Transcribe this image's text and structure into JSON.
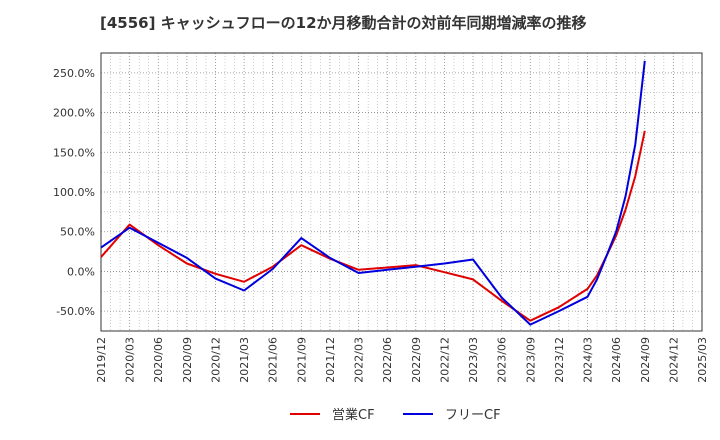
{
  "chart_data": {
    "type": "line",
    "title": "[4556]  キャッシュフローの12か月移動合計の対前年同期増減率の推移",
    "xlabel": "",
    "ylabel": "",
    "ylim": [
      -75,
      275
    ],
    "yticks": [
      -50,
      0,
      50,
      100,
      150,
      200,
      250
    ],
    "ytick_labels": [
      "-50.0%",
      "0.0%",
      "50.0%",
      "100.0%",
      "150.0%",
      "200.0%",
      "250.0%"
    ],
    "xticks": [
      "2019/12",
      "2020/03",
      "2020/06",
      "2020/09",
      "2020/12",
      "2021/03",
      "2021/06",
      "2021/09",
      "2021/12",
      "2022/03",
      "2022/06",
      "2022/09",
      "2022/12",
      "2023/03",
      "2023/06",
      "2023/09",
      "2023/12",
      "2024/03",
      "2024/06",
      "2024/09",
      "2024/12",
      "2025/03"
    ],
    "grid": true,
    "legend_position": "bottom-center",
    "series": [
      {
        "name": "営業CF",
        "color": "#e00000",
        "points": [
          {
            "x": 0,
            "y": 18
          },
          {
            "x": 1,
            "y": 59
          },
          {
            "x": 2,
            "y": 33
          },
          {
            "x": 3,
            "y": 10
          },
          {
            "x": 4,
            "y": -3
          },
          {
            "x": 5,
            "y": -13
          },
          {
            "x": 6,
            "y": 6
          },
          {
            "x": 7,
            "y": 33
          },
          {
            "x": 8,
            "y": 16
          },
          {
            "x": 9,
            "y": 2
          },
          {
            "x": 10,
            "y": 5
          },
          {
            "x": 11,
            "y": 8
          },
          {
            "x": 12,
            "y": -1
          },
          {
            "x": 13,
            "y": -10
          },
          {
            "x": 14,
            "y": -37
          },
          {
            "x": 15,
            "y": -62
          },
          {
            "x": 16,
            "y": -45
          },
          {
            "x": 17,
            "y": -22
          },
          {
            "x": 17.33,
            "y": -5
          },
          {
            "x": 17.67,
            "y": 20
          },
          {
            "x": 18,
            "y": 45
          },
          {
            "x": 18.33,
            "y": 78
          },
          {
            "x": 18.67,
            "y": 120
          },
          {
            "x": 19,
            "y": 177
          }
        ]
      },
      {
        "name": "フリーCF",
        "color": "#0000dd",
        "points": [
          {
            "x": 0,
            "y": 30
          },
          {
            "x": 1,
            "y": 55
          },
          {
            "x": 2,
            "y": 36
          },
          {
            "x": 3,
            "y": 17
          },
          {
            "x": 4,
            "y": -9
          },
          {
            "x": 5,
            "y": -24
          },
          {
            "x": 6,
            "y": 3
          },
          {
            "x": 7,
            "y": 42
          },
          {
            "x": 8,
            "y": 17
          },
          {
            "x": 9,
            "y": -2
          },
          {
            "x": 10,
            "y": 2
          },
          {
            "x": 11,
            "y": 6
          },
          {
            "x": 12,
            "y": 10
          },
          {
            "x": 13,
            "y": 15
          },
          {
            "x": 14,
            "y": -33
          },
          {
            "x": 15,
            "y": -67
          },
          {
            "x": 16,
            "y": -50
          },
          {
            "x": 17,
            "y": -32
          },
          {
            "x": 17.33,
            "y": -10
          },
          {
            "x": 17.67,
            "y": 20
          },
          {
            "x": 18,
            "y": 50
          },
          {
            "x": 18.33,
            "y": 95
          },
          {
            "x": 18.67,
            "y": 160
          },
          {
            "x": 19,
            "y": 265
          }
        ]
      }
    ]
  }
}
